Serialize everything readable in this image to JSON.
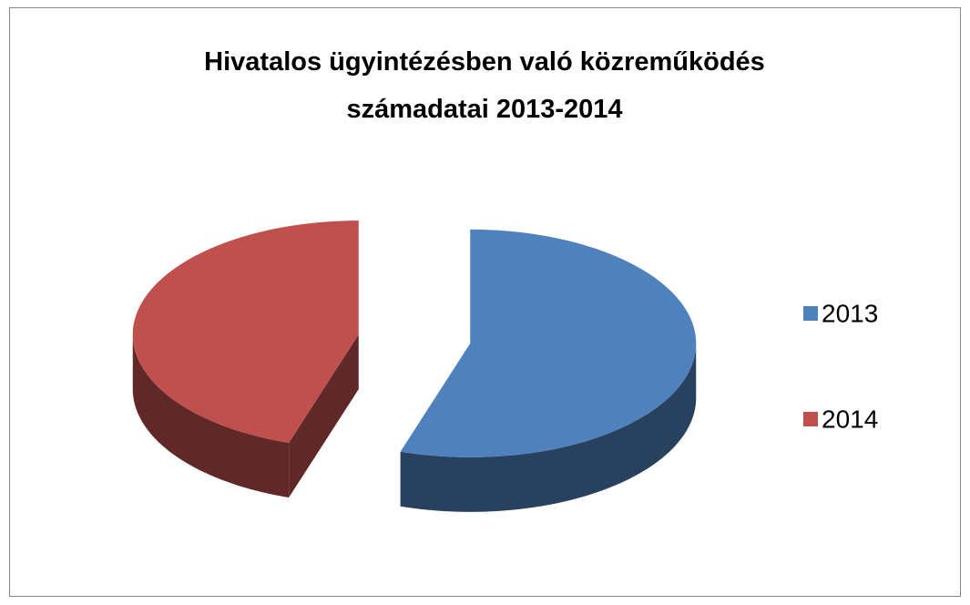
{
  "chart_data": {
    "type": "pie",
    "title": "Hivatalos ügyintézésben való közreműködés számadatai 2013-2014",
    "categories": [
      "2013",
      "2014"
    ],
    "values": [
      55,
      45
    ],
    "colors": [
      "#4f81bd",
      "#c0504d"
    ],
    "legend": "right"
  }
}
